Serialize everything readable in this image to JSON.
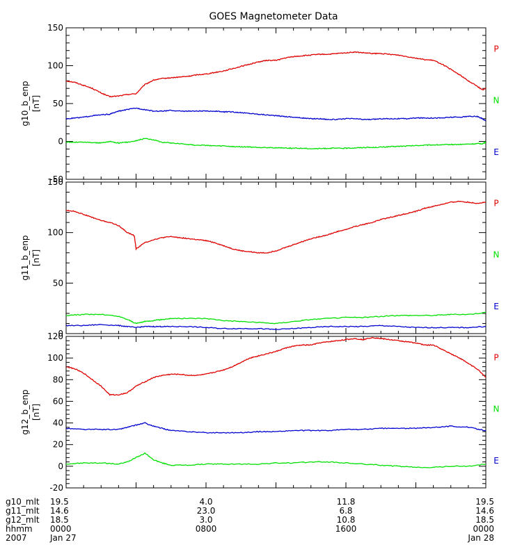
{
  "title": "GOES Magnetometer Data",
  "colors": {
    "P": "#e00000",
    "N": "#00e000",
    "E": "#0000d0",
    "axis": "#000000"
  },
  "chart_data": [
    {
      "type": "line",
      "name": "g10",
      "ylabel": "g10_b_enp",
      "yunits": "[nT]",
      "ylim": [
        -50,
        150
      ],
      "yticks": [
        -50,
        0,
        50,
        100,
        150
      ],
      "xlim": [
        0,
        24
      ],
      "legend": [
        "P",
        "N",
        "E"
      ],
      "series": [
        {
          "name": "P",
          "color": "#e00000",
          "x": [
            0,
            0.5,
            1,
            1.5,
            2,
            2.5,
            3,
            3.5,
            4,
            4.5,
            5,
            5.5,
            6,
            6.5,
            7,
            7.5,
            8,
            8.5,
            9,
            9.5,
            10,
            10.5,
            11,
            11.5,
            12,
            12.5,
            13,
            13.5,
            14,
            14.5,
            15,
            15.5,
            16,
            16.5,
            17,
            17.5,
            18,
            18.5,
            19,
            19.5,
            20,
            20.5,
            21,
            21.5,
            22,
            22.5,
            23,
            23.5,
            23.8,
            24
          ],
          "y": [
            80,
            78,
            74,
            70,
            64,
            59,
            60,
            62,
            63,
            75,
            81,
            83,
            84,
            85,
            86,
            88,
            89,
            91,
            93,
            96,
            99,
            102,
            105,
            107,
            107,
            110,
            112,
            113,
            114,
            115,
            115,
            116,
            117,
            118,
            117,
            116,
            116,
            115,
            114,
            112,
            110,
            108,
            107,
            102,
            95,
            88,
            80,
            73,
            68,
            70
          ]
        },
        {
          "name": "N",
          "color": "#00e000",
          "x": [
            0,
            0.5,
            1,
            1.5,
            2,
            2.5,
            3,
            3.5,
            4,
            4.5,
            5,
            5.5,
            6,
            6.5,
            7,
            7.5,
            8,
            8.5,
            9,
            9.5,
            10,
            10.5,
            11,
            11.5,
            12,
            12.5,
            13,
            13.5,
            14,
            14.5,
            15,
            15.5,
            16,
            16.5,
            17,
            17.5,
            18,
            18.5,
            19,
            19.5,
            20,
            20.5,
            21,
            21.5,
            22,
            22.5,
            23,
            23.5,
            23.8,
            24
          ],
          "y": [
            -1,
            -1,
            -1,
            -1.5,
            -2,
            0,
            -2,
            -1,
            1,
            4,
            2,
            -1,
            -2,
            -3,
            -4,
            -5,
            -5,
            -6,
            -6,
            -7,
            -7,
            -7.5,
            -8,
            -8,
            -8.5,
            -8.5,
            -9,
            -9,
            -9.5,
            -9.5,
            -9,
            -9,
            -9,
            -8.5,
            -8,
            -8,
            -7.5,
            -7,
            -6.5,
            -6,
            -5.5,
            -5,
            -4.5,
            -4.5,
            -4,
            -4,
            -3.5,
            -3,
            -3,
            -1
          ]
        },
        {
          "name": "E",
          "color": "#0000d0",
          "x": [
            0,
            0.5,
            1,
            1.5,
            2,
            2.5,
            3,
            3.5,
            4,
            4.5,
            5,
            5.5,
            6,
            6.5,
            7,
            7.5,
            8,
            8.5,
            9,
            9.5,
            10,
            10.5,
            11,
            11.5,
            12,
            12.5,
            13,
            13.5,
            14,
            14.5,
            15,
            15.5,
            16,
            16.5,
            17,
            17.5,
            18,
            18.5,
            19,
            19.5,
            20,
            20.5,
            21,
            21.5,
            22,
            22.5,
            23,
            23.5,
            23.8,
            24
          ],
          "y": [
            30,
            31,
            32,
            34,
            35,
            36,
            40,
            42,
            44,
            42,
            40,
            40,
            41,
            40,
            40,
            40,
            40,
            40,
            39,
            39,
            38,
            37,
            36,
            35,
            34,
            33,
            32,
            31,
            30,
            30,
            29,
            29,
            30,
            30,
            29,
            29,
            30,
            30,
            30,
            30,
            31,
            31,
            31,
            31,
            32,
            32,
            33,
            33,
            30,
            27
          ]
        }
      ]
    },
    {
      "type": "line",
      "name": "g11",
      "ylabel": "g11_b_enp",
      "yunits": "[nT]",
      "ylim": [
        0,
        150
      ],
      "yticks": [
        0,
        50,
        100,
        150
      ],
      "xlim": [
        0,
        24
      ],
      "legend": [
        "P",
        "N",
        "E"
      ],
      "series": [
        {
          "name": "P",
          "color": "#e00000",
          "x": [
            0,
            0.5,
            1,
            1.5,
            2,
            2.5,
            3,
            3.5,
            3.9,
            4,
            4.5,
            5,
            5.5,
            6,
            6.5,
            7,
            7.5,
            8,
            8.5,
            9,
            9.5,
            10,
            10.5,
            11,
            11.5,
            12,
            12.5,
            13,
            13.5,
            14,
            14.5,
            15,
            15.5,
            16,
            16.5,
            17,
            17.5,
            18,
            18.5,
            19,
            19.5,
            20,
            20.5,
            21,
            21.5,
            22,
            22.5,
            23,
            23.5,
            24
          ],
          "y": [
            122,
            121,
            118,
            115,
            112,
            110,
            107,
            100,
            97,
            84,
            90,
            93,
            95,
            96,
            95,
            94,
            93,
            92,
            90,
            87,
            84,
            82,
            81,
            80,
            80,
            82,
            85,
            88,
            91,
            94,
            96,
            98,
            101,
            103,
            106,
            108,
            110,
            113,
            115,
            117,
            119,
            121,
            124,
            126,
            128,
            130,
            131,
            130,
            129,
            130
          ]
        },
        {
          "name": "N",
          "color": "#00e000",
          "x": [
            0,
            1,
            2,
            3,
            3.5,
            4,
            4.5,
            5,
            5.5,
            6,
            7,
            8,
            9,
            10,
            11,
            12,
            13,
            14,
            15,
            16,
            17,
            18,
            19,
            20,
            21,
            22,
            23,
            24
          ],
          "y": [
            18,
            19,
            19,
            17,
            14,
            10,
            12,
            13,
            14,
            15,
            15,
            15,
            13,
            12,
            11,
            10,
            12,
            14,
            15,
            16,
            16,
            17,
            18,
            18,
            18,
            19,
            19,
            21
          ]
        },
        {
          "name": "E",
          "color": "#0000d0",
          "x": [
            0,
            1,
            2,
            3,
            3.5,
            4,
            4.5,
            5,
            5.5,
            6,
            7,
            8,
            9,
            10,
            11,
            12,
            13,
            14,
            15,
            16,
            17,
            18,
            19,
            20,
            21,
            22,
            23,
            24
          ],
          "y": [
            8,
            8,
            9,
            8,
            7,
            6,
            7,
            7,
            7,
            7,
            7,
            6,
            5,
            5,
            5,
            4,
            5,
            6,
            7,
            7,
            7,
            8,
            7,
            6,
            6,
            6,
            6,
            7
          ]
        }
      ]
    },
    {
      "type": "line",
      "name": "g12",
      "ylabel": "g12_b_enp",
      "yunits": "[nT]",
      "ylim": [
        -20,
        120
      ],
      "yticks": [
        -20,
        0,
        20,
        40,
        60,
        80,
        100,
        120
      ],
      "xlim": [
        0,
        24
      ],
      "legend": [
        "P",
        "N",
        "E"
      ],
      "series": [
        {
          "name": "P",
          "color": "#e00000",
          "x": [
            0,
            0.5,
            1,
            1.5,
            2,
            2.5,
            3,
            3.5,
            4,
            4.5,
            5,
            5.5,
            6,
            6.5,
            7,
            7.5,
            8,
            8.5,
            9,
            9.5,
            10,
            10.5,
            11,
            11.5,
            12,
            12.5,
            13,
            13.5,
            14,
            14.5,
            15,
            15.5,
            16,
            16.5,
            17,
            17.5,
            18,
            18.5,
            19,
            19.5,
            20,
            20.5,
            21,
            21.5,
            22,
            22.5,
            23,
            23.5,
            24
          ],
          "y": [
            92,
            90,
            86,
            80,
            74,
            66,
            66,
            68,
            74,
            78,
            82,
            84,
            85,
            85,
            84,
            84,
            85,
            87,
            89,
            92,
            96,
            100,
            102,
            104,
            106,
            109,
            111,
            112,
            112,
            114,
            115,
            116,
            117,
            118,
            117,
            119,
            118,
            117,
            116,
            115,
            114,
            112,
            112,
            108,
            104,
            100,
            95,
            90,
            82
          ]
        },
        {
          "name": "N",
          "color": "#00e000",
          "x": [
            0,
            1,
            2,
            3,
            3.5,
            4,
            4.5,
            5,
            5.5,
            6,
            7,
            8,
            9,
            10,
            11,
            12,
            13,
            14,
            15,
            16,
            17,
            18,
            19,
            20,
            21,
            22,
            23,
            24
          ],
          "y": [
            2,
            3,
            3,
            2,
            4,
            8,
            12,
            6,
            3,
            1,
            1,
            2,
            2,
            2,
            2,
            3,
            3,
            4,
            4,
            3,
            2,
            1,
            0,
            -1,
            -1,
            0,
            0,
            2
          ]
        },
        {
          "name": "E",
          "color": "#0000d0",
          "x": [
            0,
            1,
            2,
            3,
            3.5,
            4,
            4.5,
            5,
            5.5,
            6,
            7,
            8,
            9,
            10,
            11,
            12,
            13,
            14,
            15,
            16,
            17,
            18,
            19,
            20,
            21,
            22,
            23,
            24
          ],
          "y": [
            35,
            34,
            34,
            34,
            36,
            38,
            40,
            37,
            35,
            33,
            32,
            31,
            31,
            31,
            32,
            32,
            33,
            33,
            33,
            34,
            34,
            35,
            35,
            35,
            36,
            37,
            36,
            33
          ]
        }
      ]
    }
  ],
  "footer": {
    "x_positions": [
      0,
      8,
      16,
      24
    ],
    "rows": [
      {
        "label": "g10_mlt",
        "values": [
          "19.5",
          "4.0",
          "11.8",
          "19.5"
        ]
      },
      {
        "label": "g11_mlt",
        "values": [
          "14.6",
          "23.0",
          "6.8",
          "14.6"
        ]
      },
      {
        "label": "g12_mlt",
        "values": [
          "18.5",
          "3.0",
          "10.8",
          "18.5"
        ]
      },
      {
        "label": "hhmm",
        "values": [
          "0000",
          "0800",
          "1600",
          "0000"
        ]
      },
      {
        "label": "2007",
        "values": [
          "Jan 27",
          "",
          "",
          "Jan 28"
        ]
      }
    ]
  }
}
